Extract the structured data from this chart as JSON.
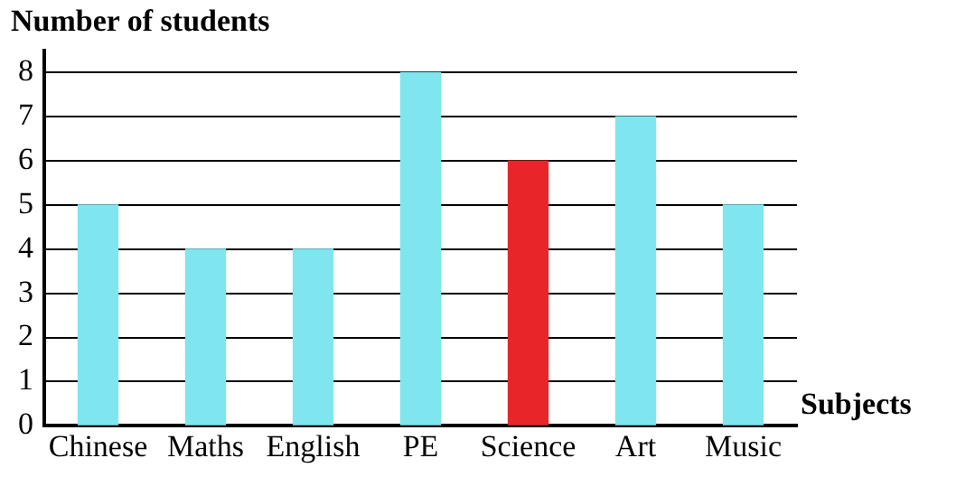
{
  "chart_data": {
    "type": "bar",
    "ylabel": "Number of students",
    "xlabel": "Subjects",
    "categories": [
      "Chinese",
      "Maths",
      "English",
      "PE",
      "Science",
      "Art",
      "Music"
    ],
    "values": [
      5,
      4,
      4,
      8,
      6,
      7,
      5
    ],
    "colors": [
      "#7fe6f0",
      "#7fe6f0",
      "#7fe6f0",
      "#7fe6f0",
      "#e8262a",
      "#7fe6f0",
      "#7fe6f0"
    ],
    "ylim": [
      0,
      8.5
    ],
    "yticks": [
      0,
      1,
      2,
      3,
      4,
      5,
      6,
      7,
      8
    ],
    "grid": "y",
    "legend": false
  }
}
